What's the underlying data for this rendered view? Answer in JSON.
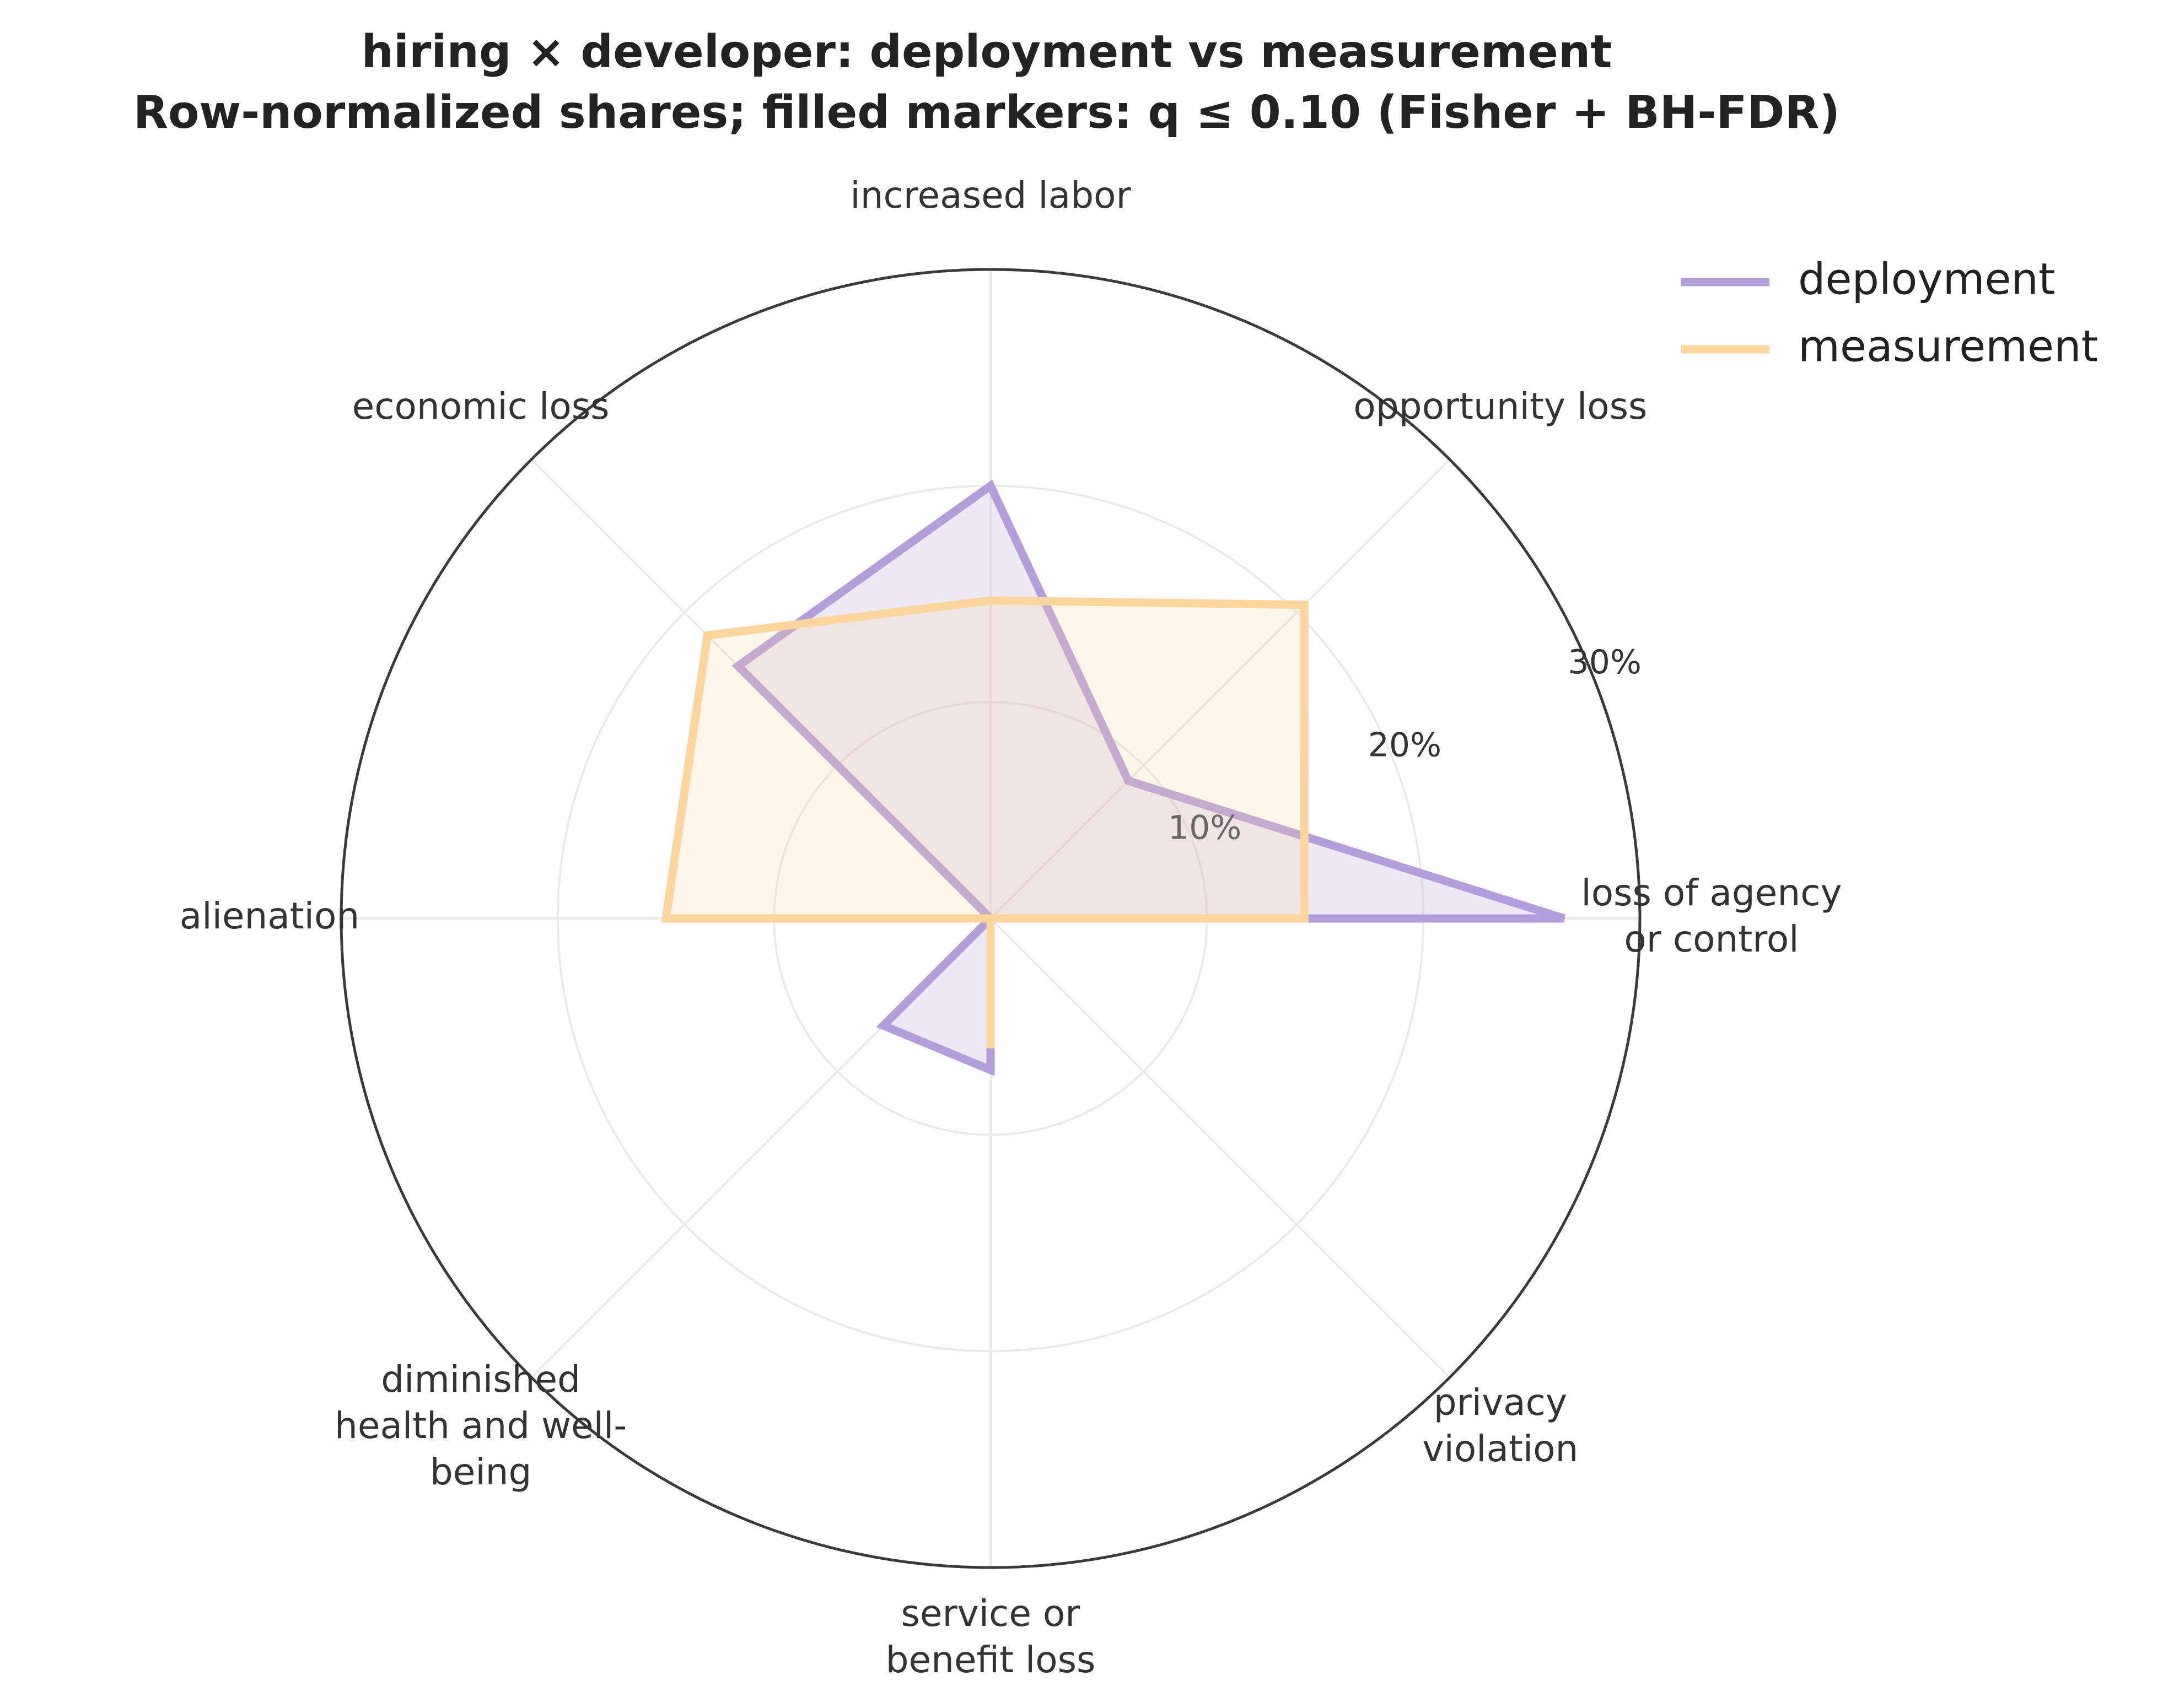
{
  "chart_data": {
    "type": "radar",
    "title_line1": "hiring × developer: deployment vs measurement",
    "title_line2": "Row-normalized shares; filled markers: q ≤ 0.10 (Fisher + BH-FDR)",
    "axes": [
      {
        "key": "loss_of_agency",
        "label_lines": [
          "loss of agency",
          "or control"
        ]
      },
      {
        "key": "opportunity_loss",
        "label_lines": [
          "opportunity loss"
        ]
      },
      {
        "key": "increased_labor",
        "label_lines": [
          "increased labor"
        ]
      },
      {
        "key": "economic_loss",
        "label_lines": [
          "economic loss"
        ]
      },
      {
        "key": "alienation",
        "label_lines": [
          "alienation"
        ]
      },
      {
        "key": "diminished_health",
        "label_lines": [
          "diminished",
          "health and well-",
          "being"
        ]
      },
      {
        "key": "service_loss",
        "label_lines": [
          "service or",
          "benefit loss"
        ]
      },
      {
        "key": "privacy_violation",
        "label_lines": [
          "privacy",
          "violation"
        ]
      }
    ],
    "radial_ticks": [
      10,
      20,
      30
    ],
    "radial_tick_labels": [
      "10%",
      "20%",
      "30%"
    ],
    "rmax": 30,
    "grid": true,
    "legend_position": "top-right",
    "series": [
      {
        "name": "deployment",
        "color": "#b39ddb",
        "values": [
          26.5,
          9.0,
          20.0,
          16.5,
          0.0,
          7.0,
          7.0,
          0.0
        ]
      },
      {
        "name": "measurement",
        "color": "#ffd59e",
        "values": [
          14.5,
          20.5,
          14.7,
          18.5,
          15.0,
          0.0,
          6.0,
          0.0
        ]
      }
    ]
  }
}
